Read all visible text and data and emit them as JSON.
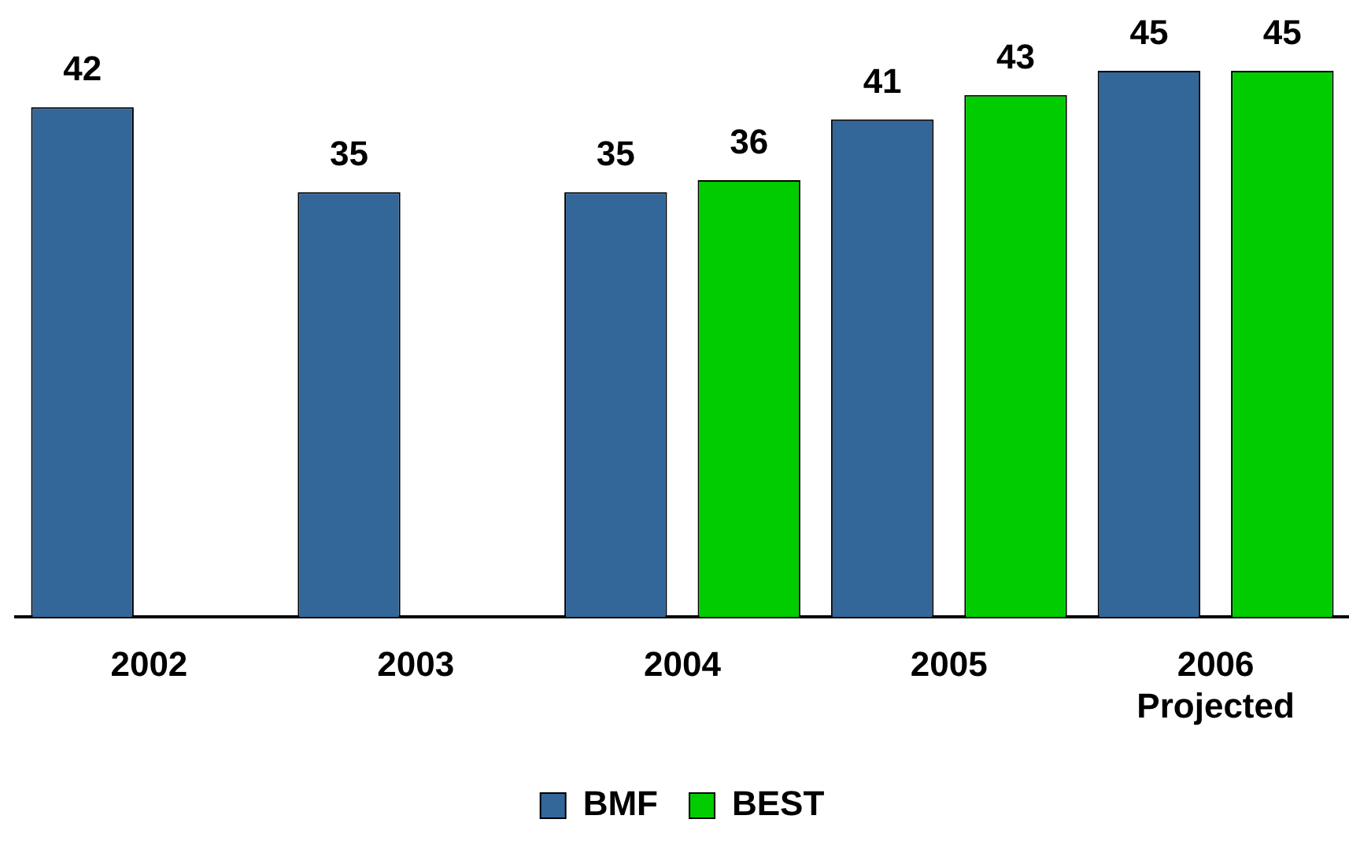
{
  "chart_data": {
    "type": "bar",
    "categories": [
      "2002",
      "2003",
      "2004",
      "2005",
      "2006\nProjected"
    ],
    "series": [
      {
        "name": "BMF",
        "color": "#336699",
        "values": [
          42,
          35,
          35,
          41,
          45
        ]
      },
      {
        "name": "BEST",
        "color": "#00cc00",
        "values": [
          null,
          null,
          36,
          43,
          45
        ]
      }
    ],
    "ylim": [
      0,
      45
    ],
    "data_labels": true,
    "legend": "bottom",
    "grid": false,
    "tick_labels": "x"
  }
}
